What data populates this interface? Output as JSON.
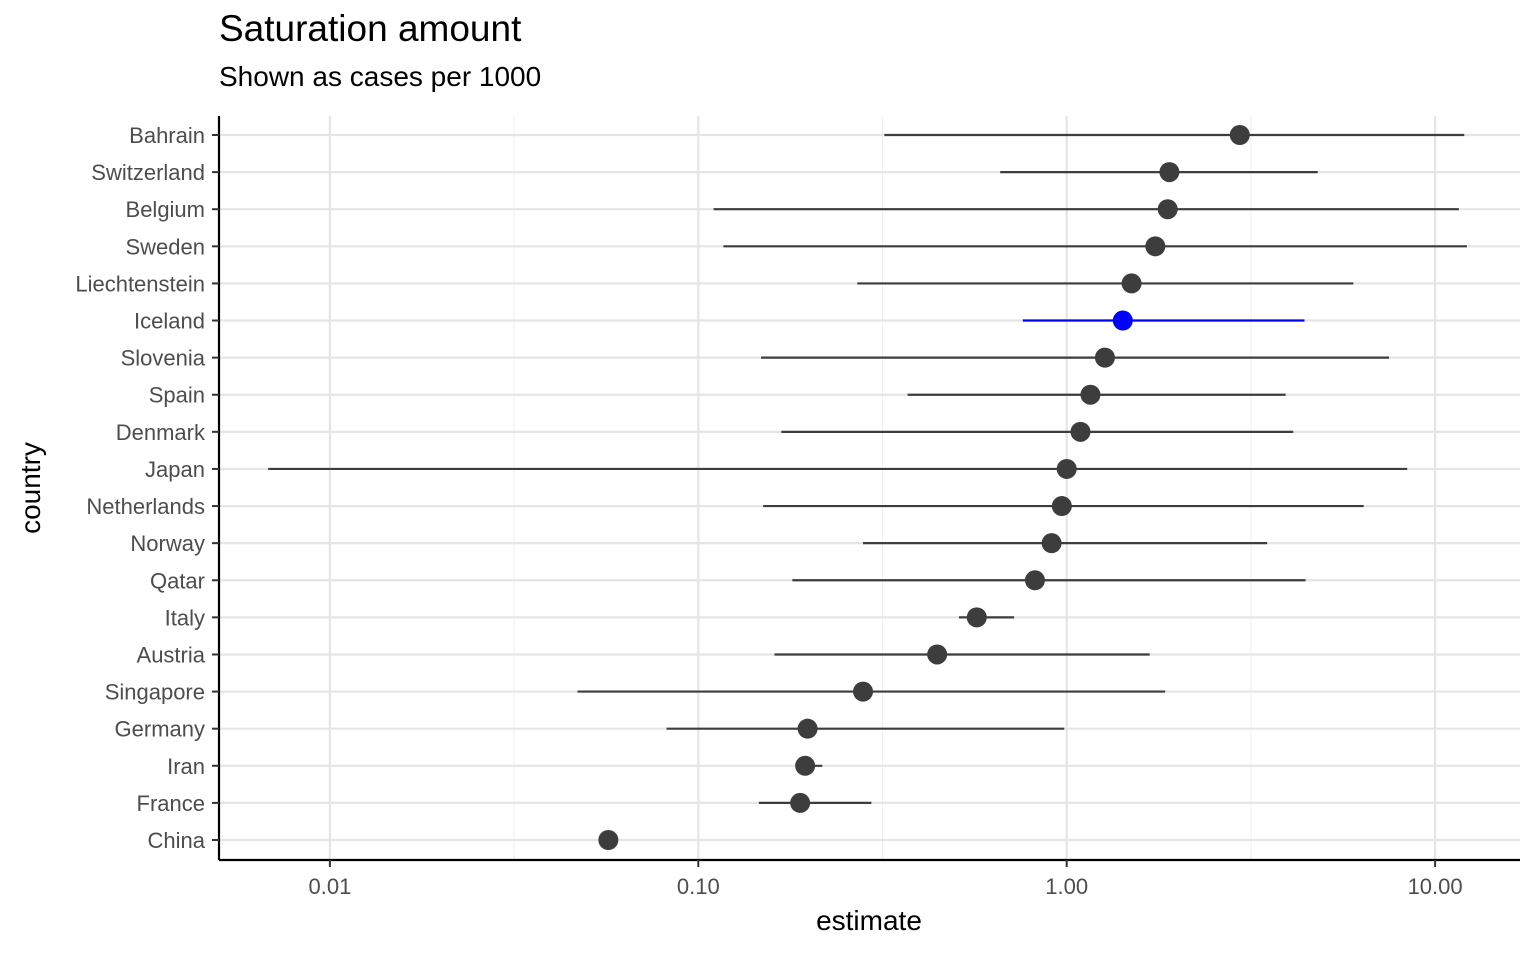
{
  "chart_data": {
    "type": "scatter",
    "title": "Saturation amount",
    "subtitle": "Shown as cases per 1000",
    "xlabel": "estimate",
    "ylabel": "country",
    "x_scale": "log10",
    "xlim": [
      0.005,
      17
    ],
    "x_ticks": [
      0.01,
      0.1,
      1,
      10
    ],
    "x_tick_labels": [
      "0.01",
      "0.10",
      "1.00",
      "10.00"
    ],
    "grid": true,
    "colors": {
      "default": "#3d3d3d",
      "highlight": "#0000ff",
      "grid": "#e5e5e5",
      "axis": "#000000"
    },
    "highlight": "Iceland",
    "points": [
      {
        "country": "Bahrain",
        "estimate": 2.95,
        "low": 0.32,
        "high": 12.0
      },
      {
        "country": "Switzerland",
        "estimate": 1.9,
        "low": 0.66,
        "high": 4.8
      },
      {
        "country": "Belgium",
        "estimate": 1.88,
        "low": 0.11,
        "high": 11.6
      },
      {
        "country": "Sweden",
        "estimate": 1.74,
        "low": 0.117,
        "high": 12.2
      },
      {
        "country": "Liechtenstein",
        "estimate": 1.5,
        "low": 0.27,
        "high": 6.0
      },
      {
        "country": "Iceland",
        "estimate": 1.42,
        "low": 0.76,
        "high": 4.42
      },
      {
        "country": "Slovenia",
        "estimate": 1.27,
        "low": 0.148,
        "high": 7.5
      },
      {
        "country": "Spain",
        "estimate": 1.16,
        "low": 0.37,
        "high": 3.93
      },
      {
        "country": "Denmark",
        "estimate": 1.09,
        "low": 0.168,
        "high": 4.12
      },
      {
        "country": "Japan",
        "estimate": 1.0,
        "low": 0.0068,
        "high": 8.4
      },
      {
        "country": "Netherlands",
        "estimate": 0.97,
        "low": 0.15,
        "high": 6.4
      },
      {
        "country": "Norway",
        "estimate": 0.91,
        "low": 0.28,
        "high": 3.5
      },
      {
        "country": "Qatar",
        "estimate": 0.82,
        "low": 0.18,
        "high": 4.45
      },
      {
        "country": "Italy",
        "estimate": 0.57,
        "low": 0.51,
        "high": 0.72
      },
      {
        "country": "Austria",
        "estimate": 0.445,
        "low": 0.161,
        "high": 1.68
      },
      {
        "country": "Singapore",
        "estimate": 0.28,
        "low": 0.047,
        "high": 1.85
      },
      {
        "country": "Germany",
        "estimate": 0.198,
        "low": 0.082,
        "high": 0.985
      },
      {
        "country": "Iran",
        "estimate": 0.195,
        "low": 0.19,
        "high": 0.217
      },
      {
        "country": "France",
        "estimate": 0.189,
        "low": 0.146,
        "high": 0.295
      },
      {
        "country": "China",
        "estimate": 0.057,
        "low": 0.057,
        "high": 0.057
      }
    ]
  }
}
